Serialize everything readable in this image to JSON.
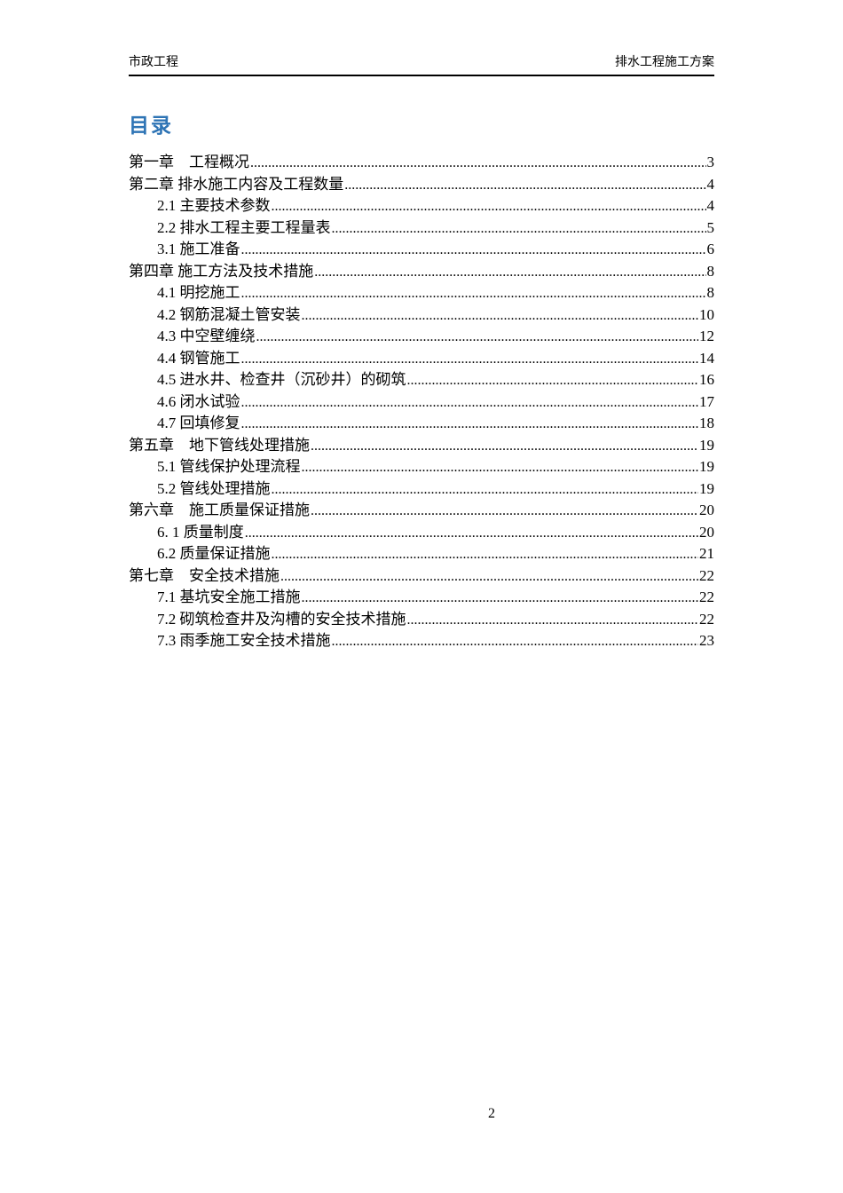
{
  "header": {
    "left_text": "市政工程",
    "right_text": "排水工程施工方案"
  },
  "toc": {
    "title": "目录",
    "entries": [
      {
        "level": 1,
        "text": "第一章　工程概况",
        "page": "3"
      },
      {
        "level": 1,
        "text": "第二章 排水施工内容及工程数量",
        "page": "4"
      },
      {
        "level": 2,
        "text": "2.1 主要技术参数",
        "page": "4"
      },
      {
        "level": 2,
        "text": "2.2 排水工程主要工程量表",
        "page": "5"
      },
      {
        "level": 2,
        "text": "3.1 施工准备",
        "page": "6"
      },
      {
        "level": 1,
        "text": "第四章 施工方法及技术措施",
        "page": "8"
      },
      {
        "level": 2,
        "text": "4.1 明挖施工",
        "page": "8"
      },
      {
        "level": 2,
        "text": "4.2 钢筋混凝土管安装",
        "page": "10"
      },
      {
        "level": 2,
        "text": "4.3 中空壁缠绕",
        "page": "12"
      },
      {
        "level": 2,
        "text": "4.4 钢管施工",
        "page": "14"
      },
      {
        "level": 2,
        "text": "4.5 进水井、检查井（沉砂井）的砌筑",
        "page": "16"
      },
      {
        "level": 2,
        "text": "4.6 闭水试验",
        "page": "17"
      },
      {
        "level": 2,
        "text": "4.7 回填修复",
        "page": "18"
      },
      {
        "level": 1,
        "text": "第五章　地下管线处理措施",
        "page": "19"
      },
      {
        "level": 2,
        "text": "5.1 管线保护处理流程",
        "page": "19"
      },
      {
        "level": 2,
        "text": "5.2 管线处理措施",
        "page": "19"
      },
      {
        "level": 1,
        "text": "第六章　施工质量保证措施",
        "page": "20"
      },
      {
        "level": 2,
        "text": "6. 1 质量制度",
        "page": "20"
      },
      {
        "level": 2,
        "text": "6.2 质量保证措施",
        "page": "21"
      },
      {
        "level": 1,
        "text": "第七章　安全技术措施",
        "page": "22"
      },
      {
        "level": 2,
        "text": "7.1 基坑安全施工措施",
        "page": "22"
      },
      {
        "level": 2,
        "text": "7.2 砌筑检查井及沟槽的安全技术措施",
        "page": "22"
      },
      {
        "level": 2,
        "text": "7.3 雨季施工安全技术措施",
        "page": "23"
      }
    ]
  },
  "footer": {
    "page_number": "2"
  },
  "colors": {
    "title_blue": "#2E74B5",
    "text_black": "#000000"
  }
}
